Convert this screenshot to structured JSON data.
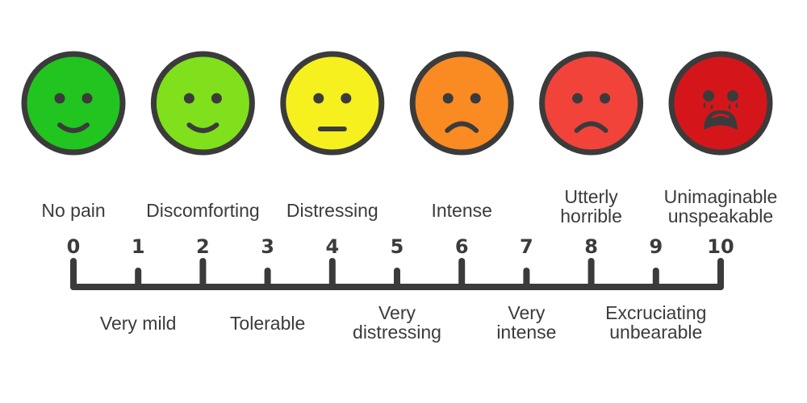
{
  "scale": {
    "numbers": [
      "0",
      "1",
      "2",
      "3",
      "4",
      "5",
      "6",
      "7",
      "8",
      "9",
      "10"
    ],
    "upper_labels": [
      {
        "level": 0,
        "lines": [
          "No pain"
        ]
      },
      {
        "level": 2,
        "lines": [
          "Discomforting"
        ]
      },
      {
        "level": 4,
        "lines": [
          "Distressing"
        ]
      },
      {
        "level": 6,
        "lines": [
          "Intense"
        ]
      },
      {
        "level": 8,
        "lines": [
          "Utterly",
          "horrible"
        ]
      },
      {
        "level": 10,
        "lines": [
          "Unimaginable",
          "unspeakable"
        ]
      }
    ],
    "lower_labels": [
      {
        "level": 1,
        "lines": [
          "Very mild"
        ]
      },
      {
        "level": 3,
        "lines": [
          "Tolerable"
        ]
      },
      {
        "level": 5,
        "lines": [
          "Very",
          "distressing"
        ]
      },
      {
        "level": 7,
        "lines": [
          "Very",
          "intense"
        ]
      },
      {
        "level": 9,
        "lines": [
          "Excruciating",
          "unbearable"
        ]
      }
    ]
  },
  "faces": [
    {
      "level": 0,
      "expression": "smile",
      "color": "#22c41f"
    },
    {
      "level": 2,
      "expression": "smile",
      "color": "#7fe01b"
    },
    {
      "level": 4,
      "expression": "neutral",
      "color": "#f6f01e"
    },
    {
      "level": 6,
      "expression": "frown",
      "color": "#f98b22"
    },
    {
      "level": 8,
      "expression": "frown",
      "color": "#f2433b"
    },
    {
      "level": 10,
      "expression": "crying",
      "color": "#d4161b"
    }
  ],
  "colors": {
    "outline": "#3b3b3b",
    "text": "#3b3b3b"
  }
}
